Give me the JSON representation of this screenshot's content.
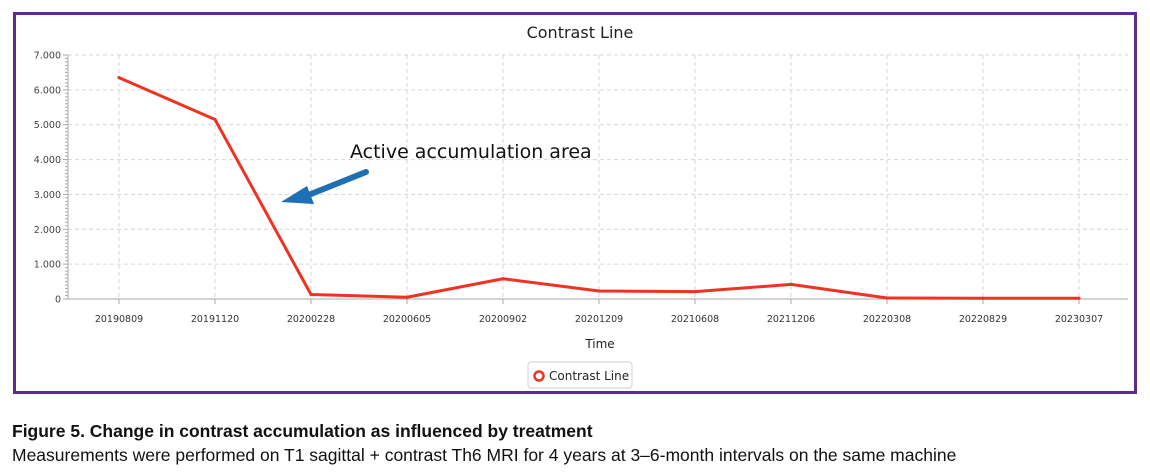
{
  "chart_data": {
    "type": "line",
    "title": "Contrast Line",
    "xlabel": "Time",
    "ylabel": "",
    "categories": [
      "20190809",
      "20191120",
      "20200228",
      "20200605",
      "20200902",
      "20201209",
      "20210608",
      "20211206",
      "20220308",
      "20220829",
      "20230307"
    ],
    "series": [
      {
        "name": "Contrast Line",
        "color": "#ee3322",
        "values": [
          6.35,
          5.15,
          0.13,
          0.05,
          0.58,
          0.23,
          0.21,
          0.42,
          0.03,
          0.02,
          0.02
        ]
      }
    ],
    "ylim": [
      0,
      7
    ],
    "yticks": [
      "0",
      "1.000",
      "2.000",
      "3.000",
      "4.000",
      "5.000",
      "6.000",
      "7.000"
    ],
    "grid": true,
    "legend_position": "bottom-center",
    "annotation": {
      "text": "Active accumulation area",
      "arrow_color": "#1f6fb5"
    }
  },
  "caption": {
    "title": "Figure 5. Change in contrast accumulation as influenced by treatment",
    "text": "Measurements were performed on T1 sagittal + contrast Th6 MRI for 4 years at 3–6-month intervals on the same machine"
  },
  "colors": {
    "frame": "#5b2d8c",
    "grid": "#d6d6d6",
    "axis": "#aaaaaa"
  }
}
